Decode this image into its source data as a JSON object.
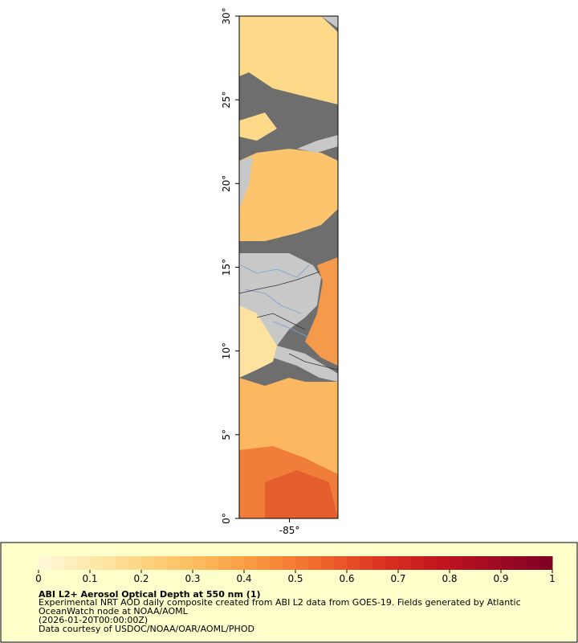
{
  "map": {
    "lat_range": [
      0,
      30
    ],
    "lon_range": [
      -88,
      -82.1
    ],
    "lat_ticks": [
      {
        "value": 0,
        "label": "0°"
      },
      {
        "value": 5,
        "label": "5°"
      },
      {
        "value": 10,
        "label": "10°"
      },
      {
        "value": 15,
        "label": "15°"
      },
      {
        "value": 20,
        "label": "20°"
      },
      {
        "value": 25,
        "label": "25°"
      },
      {
        "value": 30,
        "label": "30°"
      }
    ],
    "lon_ticks": [
      {
        "value": -85,
        "label": "-85°"
      }
    ],
    "colorbar": {
      "range": [
        0,
        1
      ],
      "ticks": [
        0,
        0.1,
        0.2,
        0.3,
        0.4,
        0.5,
        0.6,
        0.7,
        0.8,
        0.9,
        1
      ],
      "colors": [
        "#fff8dc",
        "#fee8a8",
        "#fdd07a",
        "#fcb456",
        "#f98f3c",
        "#f0642c",
        "#db3322",
        "#c3151f",
        "#a00a22",
        "#800026"
      ]
    },
    "title": "ABI L2+ Aerosol Optical Depth at 550 nm (1)",
    "lines": [
      "Experimental NRT AOD daily composite created from ABI L2 data from GOES-19. Fields generated by Atlantic",
      "OceanWatch node at NOAA/AOML",
      "(2026-01-20T00:00:00Z)",
      "Data courtesy of USDOC/NOAA/OAR/AOML/PHOD"
    ]
  }
}
